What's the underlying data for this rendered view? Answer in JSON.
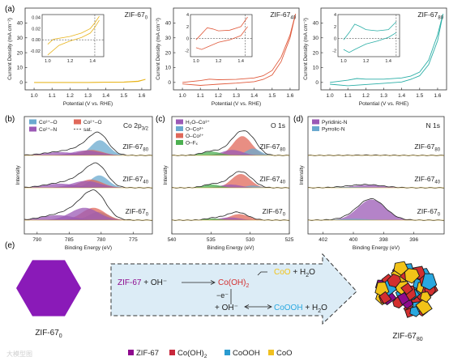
{
  "panel_labels": {
    "a": "(a)",
    "b": "(b)",
    "c": "(c)",
    "d": "(d)",
    "e": "(e)"
  },
  "chart_data": [
    {
      "type": "line",
      "panel": "a1",
      "sample_label": "ZIF-67",
      "sample_sub": "0",
      "xlabel": "Potential (V vs. RHE)",
      "ylabel": "Current Density (mA cm⁻²)",
      "xlim": [
        0.95,
        1.65
      ],
      "ylim": [
        -5,
        50
      ],
      "xticks": [
        "1.0",
        "1.1",
        "1.2",
        "1.3",
        "1.4",
        "1.5",
        "1.6"
      ],
      "yticks": [
        "0",
        "10",
        "20",
        "30",
        "40"
      ],
      "color": "#e8b41c",
      "series": [
        {
          "x": [
            1.0,
            1.3,
            1.5,
            1.58,
            1.62
          ],
          "y": [
            0.0,
            0.02,
            0.3,
            0.9,
            2.0
          ]
        },
        {
          "x": [
            1.0,
            1.3,
            1.5,
            1.58,
            1.62
          ],
          "y": [
            -0.05,
            -0.02,
            0.15,
            0.6,
            2.0
          ]
        }
      ],
      "inset": {
        "xlim": [
          0.95,
          1.5
        ],
        "ylim": [
          -0.03,
          0.045
        ],
        "xticks": [
          "1.0",
          "1.2",
          "1.4"
        ],
        "yticks": [
          "0.04",
          "0.02",
          "0.00",
          "-0.02"
        ],
        "vline": 1.42,
        "series": [
          {
            "x": [
              1.0,
              1.05,
              1.2,
              1.3,
              1.38,
              1.42,
              1.46
            ],
            "y": [
              -0.008,
              0.001,
              0.006,
              0.012,
              0.02,
              0.03,
              0.042
            ]
          },
          {
            "x": [
              1.46,
              1.42,
              1.38,
              1.3,
              1.2,
              1.1,
              1.0
            ],
            "y": [
              0.035,
              0.022,
              0.012,
              0.004,
              -0.002,
              -0.01,
              -0.027
            ]
          }
        ]
      }
    },
    {
      "type": "line",
      "panel": "a2",
      "sample_label": "ZIF-67",
      "sample_sub": "40",
      "xlabel": "Potential (V vs. RHE)",
      "ylabel": "Current Density (mA cm⁻²)",
      "xlim": [
        0.95,
        1.65
      ],
      "ylim": [
        -5,
        50
      ],
      "xticks": [
        "1.0",
        "1.1",
        "1.2",
        "1.3",
        "1.4",
        "1.5",
        "1.6"
      ],
      "yticks": [
        "0",
        "10",
        "20",
        "30",
        "40"
      ],
      "color": "#e05a3c",
      "series": [
        {
          "x": [
            1.0,
            1.1,
            1.15,
            1.2,
            1.3,
            1.4,
            1.45,
            1.5,
            1.55,
            1.6,
            1.63
          ],
          "y": [
            0.0,
            1.2,
            2.2,
            1.8,
            2.0,
            3.0,
            4.5,
            8.0,
            17.0,
            32.0,
            46.0
          ]
        },
        {
          "x": [
            1.63,
            1.6,
            1.55,
            1.5,
            1.45,
            1.4,
            1.3,
            1.2,
            1.1,
            1.0
          ],
          "y": [
            46.0,
            30.0,
            14.0,
            5.0,
            2.0,
            0.5,
            -0.5,
            -1.2,
            -2.0,
            -1.0
          ]
        }
      ],
      "inset": {
        "xlim": [
          0.95,
          1.5
        ],
        "ylim": [
          -3,
          4
        ],
        "xticks": [
          "1.0",
          "1.2",
          "1.4"
        ],
        "yticks": [
          "4",
          "2",
          "0",
          "-2"
        ],
        "vline": 1.44,
        "series": [
          {
            "x": [
              1.0,
              1.05,
              1.1,
              1.15,
              1.2,
              1.3,
              1.4,
              1.46
            ],
            "y": [
              -0.2,
              0.8,
              1.8,
              1.6,
              1.3,
              1.4,
              2.0,
              3.6
            ]
          },
          {
            "x": [
              1.46,
              1.4,
              1.3,
              1.2,
              1.1,
              1.05,
              1.0
            ],
            "y": [
              2.0,
              0.5,
              -0.2,
              -0.6,
              -1.4,
              -1.8,
              -1.5
            ]
          }
        ]
      }
    },
    {
      "type": "line",
      "panel": "a3",
      "sample_label": "ZIF-67",
      "sample_sub": "80",
      "xlabel": "Potential (V vs. RHE)",
      "ylabel": "Current Density (mA cm⁻²)",
      "xlim": [
        0.95,
        1.65
      ],
      "ylim": [
        -5,
        50
      ],
      "xticks": [
        "1.0",
        "1.1",
        "1.2",
        "1.3",
        "1.4",
        "1.5",
        "1.6"
      ],
      "yticks": [
        "0",
        "10",
        "20",
        "30",
        "40"
      ],
      "color": "#2aaea6",
      "series": [
        {
          "x": [
            1.0,
            1.1,
            1.15,
            1.2,
            1.3,
            1.4,
            1.45,
            1.5,
            1.55,
            1.6,
            1.63
          ],
          "y": [
            0.0,
            1.5,
            2.6,
            2.2,
            2.2,
            3.0,
            4.2,
            7.0,
            15.0,
            32.0,
            46.0
          ]
        },
        {
          "x": [
            1.63,
            1.6,
            1.55,
            1.5,
            1.45,
            1.4,
            1.3,
            1.2,
            1.1,
            1.0
          ],
          "y": [
            46.0,
            28.0,
            12.0,
            4.5,
            2.0,
            0.3,
            -0.6,
            -1.4,
            -2.2,
            -1.2
          ]
        }
      ],
      "inset": {
        "xlim": [
          0.95,
          1.5
        ],
        "ylim": [
          -3,
          4
        ],
        "xticks": [
          "1.0",
          "1.2",
          "1.4"
        ],
        "yticks": [
          "4",
          "2",
          "0",
          "-2"
        ],
        "vline": 1.47,
        "series": [
          {
            "x": [
              1.0,
              1.05,
              1.1,
              1.15,
              1.2,
              1.3,
              1.4,
              1.47
            ],
            "y": [
              -0.2,
              1.0,
              2.4,
              2.0,
              1.5,
              1.3,
              1.5,
              2.8
            ]
          },
          {
            "x": [
              1.47,
              1.4,
              1.3,
              1.2,
              1.1,
              1.05,
              1.0
            ],
            "y": [
              1.0,
              0.2,
              -0.4,
              -0.9,
              -1.8,
              -2.3,
              -1.8
            ]
          }
        ]
      }
    },
    {
      "type": "line",
      "panel": "b",
      "title": "Co 2p",
      "title_sub": "3/2",
      "xlabel": "Binding Energy (eV)",
      "ylabel": "Intensity",
      "xlim": [
        792,
        772
      ],
      "xticks": [
        "790",
        "785",
        "780",
        "775"
      ],
      "legend": [
        {
          "label": "Co³⁺–O",
          "color": "#6aa9cf"
        },
        {
          "label": "Co²⁺–O",
          "color": "#e0685a"
        },
        {
          "label": "Co²⁺–N",
          "color": "#9b59b6"
        },
        {
          "label": "sat.",
          "color": "#555555",
          "dash": true
        }
      ],
      "samples": [
        {
          "label": "ZIF-67",
          "sub": "80",
          "peaks": [
            {
              "c": 780.2,
              "w": 1.4,
              "h": 0.55,
              "color": "#6aa9cf"
            },
            {
              "c": 781.6,
              "w": 1.8,
              "h": 0.2,
              "color": "#e0685a"
            },
            {
              "c": 782.3,
              "w": 2.2,
              "h": 0.18,
              "color": "#9b59b6"
            },
            {
              "c": 786.5,
              "w": 2.5,
              "h": 0.12,
              "color": "#9b59b6"
            }
          ]
        },
        {
          "label": "ZIF-67",
          "sub": "40",
          "peaks": [
            {
              "c": 780.3,
              "w": 1.4,
              "h": 0.45,
              "color": "#6aa9cf"
            },
            {
              "c": 781.6,
              "w": 1.8,
              "h": 0.3,
              "color": "#e0685a"
            },
            {
              "c": 782.4,
              "w": 2.2,
              "h": 0.25,
              "color": "#9b59b6"
            },
            {
              "c": 786.5,
              "w": 2.5,
              "h": 0.15,
              "color": "#9b59b6"
            }
          ]
        },
        {
          "label": "ZIF-67",
          "sub": "0",
          "peaks": [
            {
              "c": 780.4,
              "w": 1.5,
              "h": 0.3,
              "color": "#6aa9cf"
            },
            {
              "c": 781.2,
              "w": 1.8,
              "h": 0.45,
              "color": "#e0685a"
            },
            {
              "c": 782.6,
              "w": 2.2,
              "h": 0.45,
              "color": "#9b59b6"
            },
            {
              "c": 786.8,
              "w": 2.5,
              "h": 0.18,
              "color": "#9b59b6"
            }
          ]
        }
      ]
    },
    {
      "type": "line",
      "panel": "c",
      "title": "O 1s",
      "xlabel": "Binding Energy (eV)",
      "ylabel": "Intensity",
      "xlim": [
        540,
        525
      ],
      "xticks": [
        "540",
        "535",
        "530",
        "525"
      ],
      "legend": [
        {
          "label": "H₂O–Co³⁺",
          "color": "#9b59b6"
        },
        {
          "label": "O–Co³⁺",
          "color": "#6aa9cf"
        },
        {
          "label": "O–Co²⁺",
          "color": "#e0685a"
        },
        {
          "label": "O–Fₓ",
          "color": "#4caf50"
        }
      ],
      "samples": [
        {
          "label": "ZIF-67",
          "sub": "80",
          "peaks": [
            {
              "c": 531.0,
              "w": 1.2,
              "h": 0.7,
              "color": "#e0685a"
            },
            {
              "c": 529.6,
              "w": 0.9,
              "h": 0.25,
              "color": "#6aa9cf"
            },
            {
              "c": 532.3,
              "w": 1.3,
              "h": 0.2,
              "color": "#9b59b6"
            },
            {
              "c": 535.0,
              "w": 1.2,
              "h": 0.14,
              "color": "#4caf50"
            }
          ]
        },
        {
          "label": "ZIF-67",
          "sub": "40",
          "peaks": [
            {
              "c": 531.2,
              "w": 1.2,
              "h": 0.5,
              "color": "#e0685a"
            },
            {
              "c": 529.7,
              "w": 0.9,
              "h": 0.08,
              "color": "#6aa9cf"
            },
            {
              "c": 532.5,
              "w": 1.3,
              "h": 0.12,
              "color": "#9b59b6"
            },
            {
              "c": 534.9,
              "w": 1.1,
              "h": 0.12,
              "color": "#4caf50"
            }
          ]
        },
        {
          "label": "ZIF-67",
          "sub": "0",
          "peaks": [
            {
              "c": 531.4,
              "w": 1.2,
              "h": 0.22,
              "color": "#e0685a"
            },
            {
              "c": 532.6,
              "w": 1.3,
              "h": 0.1,
              "color": "#9b59b6"
            },
            {
              "c": 534.8,
              "w": 1.0,
              "h": 0.06,
              "color": "#4caf50"
            }
          ]
        }
      ]
    },
    {
      "type": "line",
      "panel": "d",
      "title": "N 1s",
      "xlabel": "Binding Energy (eV)",
      "ylabel": "Intensity",
      "xlim": [
        403,
        394
      ],
      "xticks": [
        "402",
        "400",
        "398",
        "396"
      ],
      "legend": [
        {
          "label": "Pyridinic-N",
          "color": "#9b59b6"
        },
        {
          "label": "Pyrrolic-N",
          "color": "#6aa9cf"
        }
      ],
      "samples": [
        {
          "label": "ZIF-67",
          "sub": "80",
          "peaks": [
            {
              "c": 399.0,
              "w": 1.0,
              "h": 0.01,
              "color": "#9b59b6"
            }
          ]
        },
        {
          "label": "ZIF-67",
          "sub": "40",
          "peaks": [
            {
              "c": 399.0,
              "w": 1.0,
              "h": 0.1,
              "color": "#9b59b6"
            },
            {
              "c": 400.2,
              "w": 1.0,
              "h": 0.03,
              "color": "#6aa9cf"
            }
          ]
        },
        {
          "label": "ZIF-67",
          "sub": "0",
          "peaks": [
            {
              "c": 398.8,
              "w": 0.9,
              "h": 0.75,
              "color": "#9b59b6"
            },
            {
              "c": 400.0,
              "w": 1.0,
              "h": 0.05,
              "color": "#6aa9cf"
            }
          ]
        }
      ]
    }
  ],
  "scheme": {
    "left_label": "ZIF-67",
    "left_sub": "0",
    "right_label": "ZIF-67",
    "right_sub": "80",
    "reaction1_a": "ZIF-67",
    "reaction1_b": " + OH⁻",
    "reaction1_product": "Co(OH)",
    "reaction1_product_sub": "2",
    "reaction2_product": "CoO",
    "reaction2_plus": " + H",
    "reaction2_h2o_sub": "2",
    "reaction2_o": "O",
    "electron": "−e⁻",
    "reaction3_a": "+ OH⁻",
    "reaction3_product": "CoOOH",
    "reaction3_plus": " + H",
    "reaction3_h2o_sub": "2",
    "reaction3_o": "O",
    "legend": [
      {
        "label": "ZIF-67",
        "color": "#8e0a8e"
      },
      {
        "label": "Co(OH)",
        "sub": "2",
        "color": "#c8283c"
      },
      {
        "label": "CoOOH",
        "color": "#2a9bd0"
      },
      {
        "label": "CoO",
        "color": "#f0c020"
      }
    ],
    "colors": {
      "zif": "#8e0a8e",
      "cooh2": "#d32f2f",
      "coooh": "#29a8e0",
      "coo": "#f2c318",
      "arrow_fill": "#dcecf6",
      "hexagon": "#8a1ab8"
    }
  },
  "watermark": "大模型图"
}
